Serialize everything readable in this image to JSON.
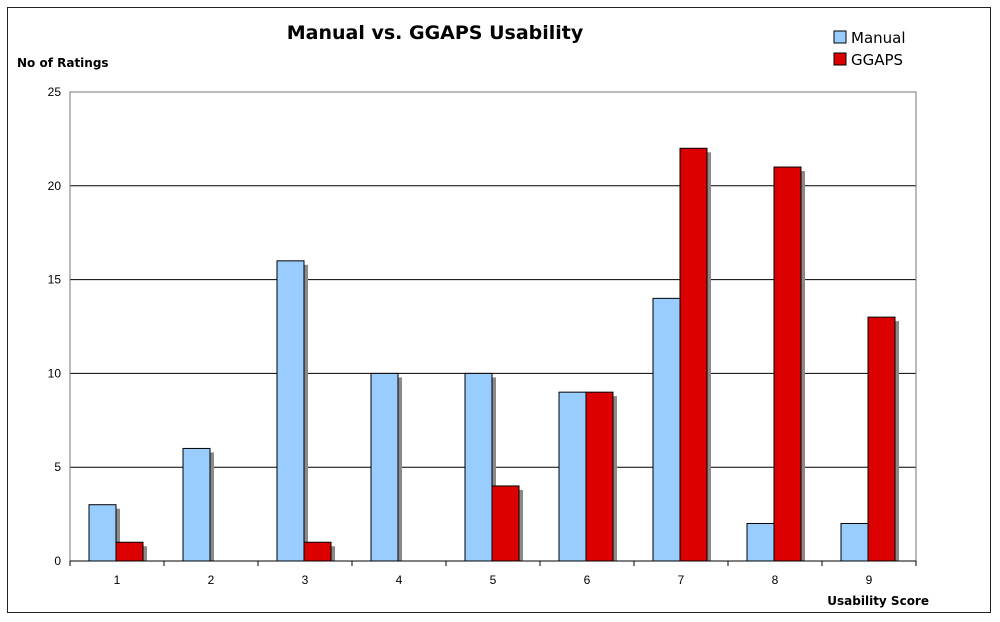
{
  "chart_data": {
    "type": "bar",
    "title": "Manual vs. GGAPS Usability",
    "xlabel": "Usability Score",
    "ylabel": "No of Ratings",
    "categories": [
      "1",
      "2",
      "3",
      "4",
      "5",
      "6",
      "7",
      "8",
      "9"
    ],
    "series": [
      {
        "name": "Manual",
        "color": "#99ccff",
        "values": [
          3,
          6,
          16,
          10,
          10,
          9,
          14,
          2,
          2
        ]
      },
      {
        "name": "GGAPS",
        "color": "#dd0000",
        "values": [
          1,
          0,
          1,
          0,
          4,
          9,
          22,
          21,
          13
        ]
      }
    ],
    "ylim": [
      0,
      25
    ],
    "yticks": [
      "0",
      "5",
      "10",
      "15",
      "20",
      "25"
    ],
    "grid": true,
    "legend": "top-right"
  }
}
